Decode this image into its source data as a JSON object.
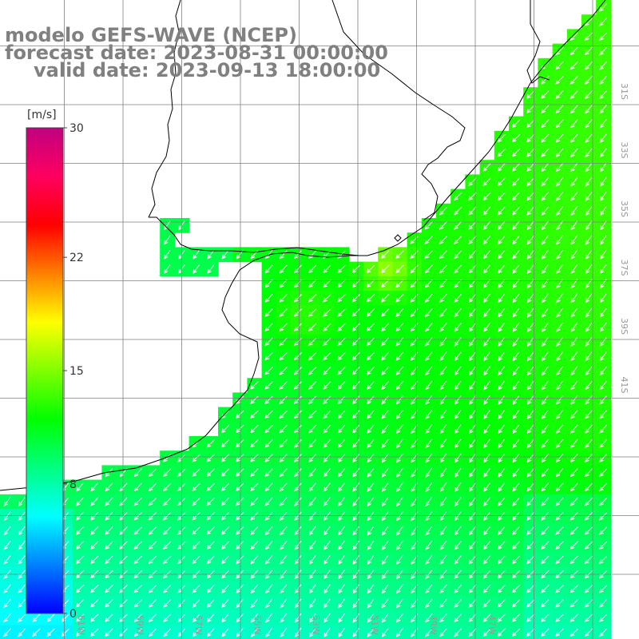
{
  "titles": {
    "model": "modelo GEFS-WAVE (NCEP)",
    "forecast": "forecast date: 2023-08-31 00:00:00",
    "valid": "valid date: 2023-09-13 18:00:00"
  },
  "colorbar": {
    "unit": "[m/s]",
    "ticks": [
      {
        "label": "30",
        "value": 30
      },
      {
        "label": "22",
        "value": 22
      },
      {
        "label": "15",
        "value": 15
      },
      {
        "label": "8",
        "value": 8
      },
      {
        "label": "0",
        "value": 0
      }
    ],
    "range": [
      0,
      30
    ],
    "colors": [
      "#0000ff",
      "#0080ff",
      "#00ffff",
      "#00ff80",
      "#00ff00",
      "#80ff00",
      "#ffff00",
      "#ff8000",
      "#ff0000",
      "#ff0060",
      "#c00080"
    ]
  },
  "longitude_labels": [
    "61W",
    "59W",
    "57W",
    "55W",
    "53W",
    "51W",
    "49W",
    "47W"
  ],
  "latitude_labels": [
    "31S",
    "33S",
    "35S",
    "37S",
    "39S",
    "41S"
  ],
  "map_style": {
    "land_color": "#ffffff",
    "coast_color": "#000000",
    "grid_color": "#7f7f7f",
    "arrow_color": "#ffffff",
    "prevailing_wind": "southwestward"
  }
}
